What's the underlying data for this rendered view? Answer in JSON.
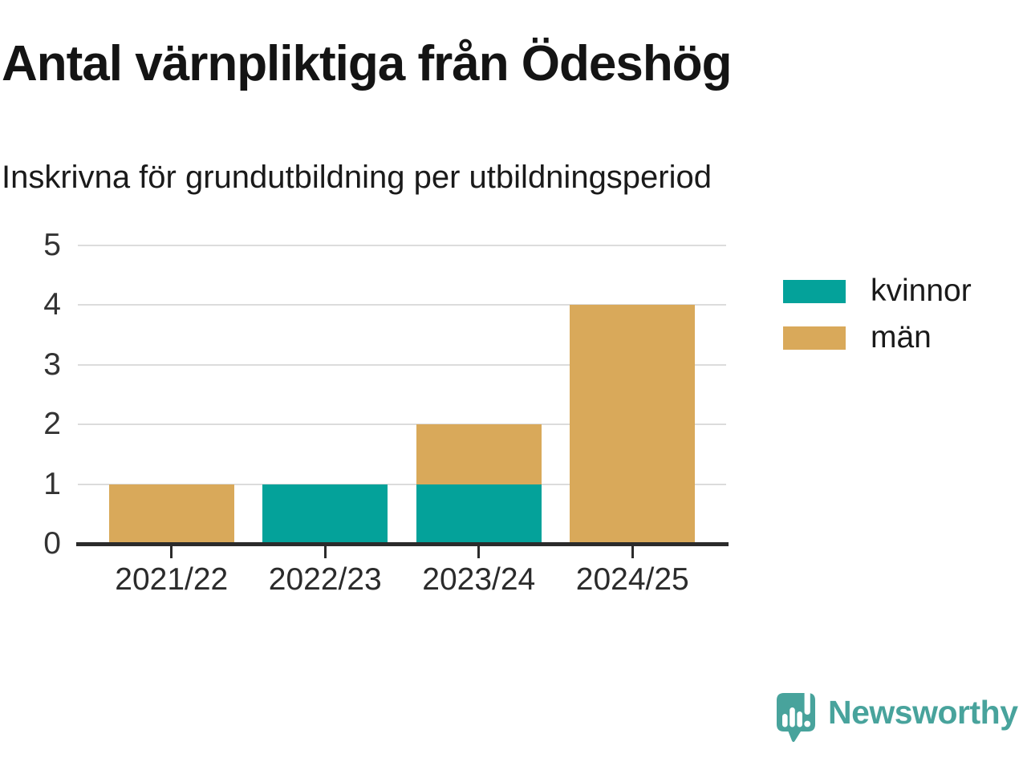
{
  "header": {
    "title": "Antal värnpliktiga från Ödeshög",
    "subtitle": "Inskrivna för grundutbildning per utbildningsperiod"
  },
  "branding": {
    "name": "Newsworthy",
    "logo_icon": "speech-bubble-bar-chart-exclamation-icon",
    "color": "#48a39c"
  },
  "colors": {
    "kvinnor": "#04a29a",
    "man": "#d9a95a",
    "axis": "#2b2b2b",
    "gridline": "#dcdcdc",
    "tick_label": "#333333",
    "text": "#1a1a1a"
  },
  "chart_data": {
    "type": "bar",
    "stacked": true,
    "title": "Antal värnpliktiga från Ödeshög",
    "subtitle": "Inskrivna för grundutbildning per utbildningsperiod",
    "categories": [
      "2021/22",
      "2022/23",
      "2023/24",
      "2024/25"
    ],
    "series": [
      {
        "name": "kvinnor",
        "color": "#04a29a",
        "values": [
          0,
          1,
          1,
          0
        ]
      },
      {
        "name": "män",
        "color": "#d9a95a",
        "values": [
          1,
          0,
          1,
          4
        ]
      }
    ],
    "xlabel": "",
    "ylabel": "",
    "ylim": [
      0,
      5
    ],
    "yticks": [
      0,
      1,
      2,
      3,
      4,
      5
    ],
    "grid": true,
    "legend_position": "right"
  }
}
